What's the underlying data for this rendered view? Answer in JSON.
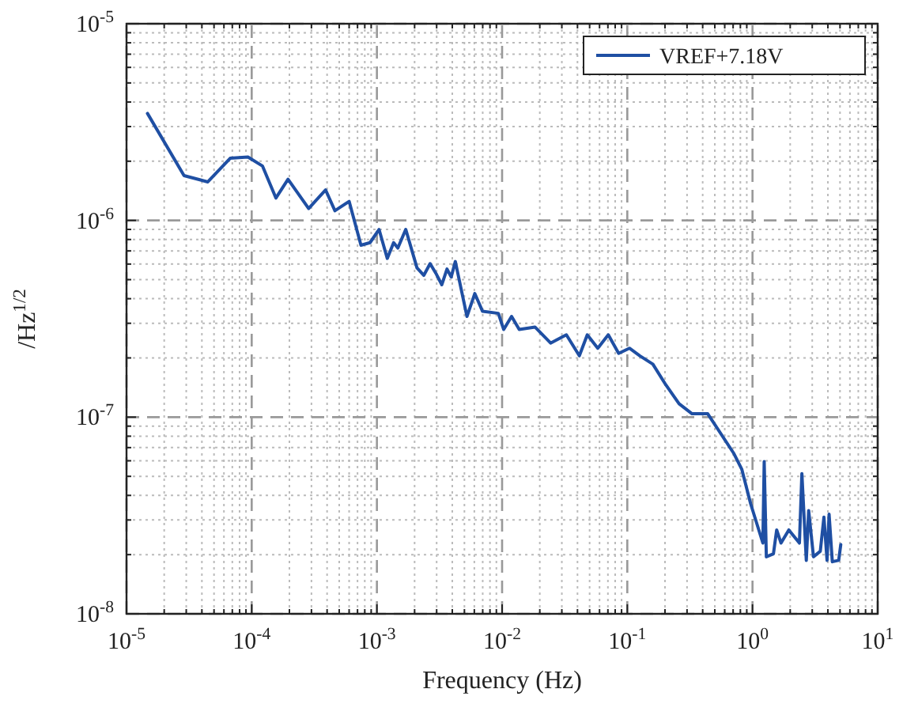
{
  "chart_data": {
    "type": "line",
    "xlabel": "Frequency (Hz)",
    "ylabel": "/Hz$^{1/2}$",
    "log": "xy",
    "grid": true,
    "legend": "top right",
    "line_style": "solid",
    "xlim": [
      1e-05,
      10
    ],
    "ylim": [
      1e-08,
      1e-05
    ],
    "xticks": [
      {
        "value": 1e-05,
        "label": "10$^{-5}$"
      },
      {
        "value": 0.0001,
        "label": "10$^{-4}$"
      },
      {
        "value": 0.001,
        "label": "10$^{-3}$"
      },
      {
        "value": 0.01,
        "label": "10$^{-2}$"
      },
      {
        "value": 0.1,
        "label": "10$^{-1}$"
      },
      {
        "value": 1,
        "label": "10$^{0}$"
      },
      {
        "value": 10,
        "label": "10$^{1}$"
      }
    ],
    "yticks": [
      {
        "value": 1e-08,
        "label": "10$^{-8}$"
      },
      {
        "value": 1e-07,
        "label": "10$^{-7}$"
      },
      {
        "value": 1e-06,
        "label": "10$^{-6}$"
      },
      {
        "value": 1e-05,
        "label": "10$^{-5}$"
      }
    ],
    "series": [
      {
        "name": "VREF+7.18V",
        "color": "#1f4fa3",
        "x": [
          1.47e-05,
          2.88e-05,
          4.46e-05,
          6.73e-05,
          9.33e-05,
          0.000122,
          0.000156,
          0.000195,
          0.000285,
          0.000389,
          0.000462,
          0.0006,
          0.000746,
          0.000881,
          0.00104,
          0.00121,
          0.00136,
          0.00147,
          0.0017,
          0.00209,
          0.00237,
          0.00266,
          0.00299,
          0.0033,
          0.00363,
          0.00392,
          0.00423,
          0.00524,
          0.00605,
          0.00698,
          0.00933,
          0.0103,
          0.0119,
          0.0137,
          0.0183,
          0.0244,
          0.0326,
          0.0414,
          0.0479,
          0.0581,
          0.0705,
          0.0853,
          0.104,
          0.126,
          0.16,
          0.203,
          0.259,
          0.329,
          0.439,
          0.711,
          0.822,
          0.966,
          1.21,
          1.24,
          1.29,
          1.47,
          1.56,
          1.69,
          1.95,
          2.37,
          2.48,
          2.69,
          2.81,
          3.07,
          3.48,
          3.72,
          3.94,
          4.09,
          4.34,
          4.88,
          5.07
        ],
        "values": [
          3.5e-06,
          1.69e-06,
          1.57e-06,
          2.07e-06,
          2.1e-06,
          1.89e-06,
          1.3e-06,
          1.62e-06,
          1.15e-06,
          1.43e-06,
          1.12e-06,
          1.25e-06,
          7.48e-07,
          7.71e-07,
          9e-07,
          6.41e-07,
          7.71e-07,
          7.24e-07,
          9e-07,
          5.74e-07,
          5.26e-07,
          6.03e-07,
          5.32e-07,
          4.71e-07,
          5.66e-07,
          5.16e-07,
          6.18e-07,
          3.25e-07,
          4.25e-07,
          3.45e-07,
          3.37e-07,
          2.79e-07,
          3.25e-07,
          2.79e-07,
          2.87e-07,
          2.38e-07,
          2.62e-07,
          2.05e-07,
          2.62e-07,
          2.24e-07,
          2.62e-07,
          2.11e-07,
          2.24e-07,
          2.05e-07,
          1.86e-07,
          1.46e-07,
          1.17e-07,
          1.04e-07,
          1.04e-07,
          6.52e-08,
          5.42e-08,
          3.63e-08,
          2.29e-08,
          5.94e-08,
          1.95e-08,
          2.02e-08,
          2.67e-08,
          2.29e-08,
          2.67e-08,
          2.29e-08,
          5.16e-08,
          1.87e-08,
          3.35e-08,
          1.95e-08,
          2.08e-08,
          3.1e-08,
          1.87e-08,
          3.21e-08,
          1.84e-08,
          1.87e-08,
          2.25e-08
        ]
      }
    ]
  }
}
